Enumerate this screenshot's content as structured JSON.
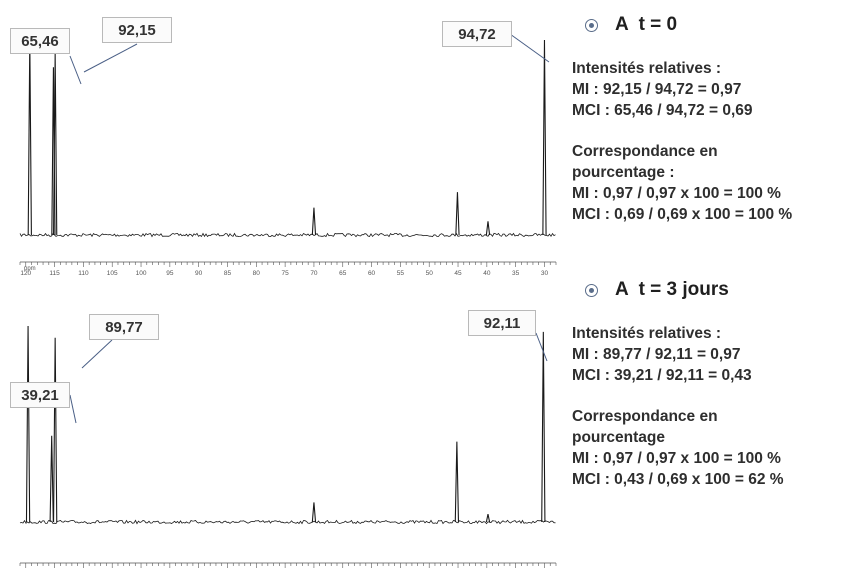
{
  "chart_data": [
    {
      "type": "line",
      "title": "",
      "xlabel": "ppm",
      "ylabel": "",
      "xlim": [
        121,
        28
      ],
      "ticks": [
        120,
        115,
        110,
        105,
        100,
        95,
        90,
        85,
        80,
        75,
        70,
        65,
        60,
        55,
        50,
        45,
        40,
        35,
        30
      ],
      "peaks": [
        {
          "ppm": 119.3,
          "height": 1.0
        },
        {
          "ppm": 115.2,
          "height": 0.86
        },
        {
          "ppm": 114.9,
          "height": 0.93
        },
        {
          "ppm": 70.0,
          "height": 0.14
        },
        {
          "ppm": 45.1,
          "height": 0.22
        },
        {
          "ppm": 39.8,
          "height": 0.07
        },
        {
          "ppm": 30.0,
          "height": 1.0
        }
      ],
      "labels": [
        {
          "text": "65,46",
          "ppm": 115.2
        },
        {
          "text": "92,15",
          "ppm": 114.9
        },
        {
          "text": "94,72",
          "ppm": 30.0
        }
      ]
    },
    {
      "type": "line",
      "title": "",
      "xlabel": "",
      "ylabel": "",
      "xlim": [
        121,
        28
      ],
      "ticks": [],
      "peaks": [
        {
          "ppm": 119.6,
          "height": 1.0
        },
        {
          "ppm": 115.5,
          "height": 0.44
        },
        {
          "ppm": 114.9,
          "height": 0.94
        },
        {
          "ppm": 70.0,
          "height": 0.1
        },
        {
          "ppm": 45.2,
          "height": 0.41
        },
        {
          "ppm": 39.8,
          "height": 0.04
        },
        {
          "ppm": 30.2,
          "height": 0.97
        }
      ],
      "labels": [
        {
          "text": "39,21",
          "ppm": 115.5
        },
        {
          "text": "89,77",
          "ppm": 114.9
        },
        {
          "text": "92,11",
          "ppm": 30.2
        }
      ]
    }
  ],
  "panel1": {
    "heading": "A  t = 0",
    "lines_a": [
      "Intensités relatives :",
      "MI : 92,15 / 94,72 = 0,97",
      "MCI : 65,46 / 94,72 = 0,69"
    ],
    "lines_b": [
      "Correspondance en",
      "pourcentage :",
      "MI : 0,97 / 0,97 x 100 = 100 %",
      "MCI : 0,69 / 0,69 x 100 = 100 %"
    ]
  },
  "panel2": {
    "heading": "A  t = 3 jours",
    "lines_a": [
      "Intensités relatives :",
      "MI : 89,77 / 92,11 = 0,97",
      "MCI : 39,21 / 92,11 = 0,43"
    ],
    "lines_b": [
      "Correspondance en",
      "pourcentage",
      "MI : 0,97 / 0,97 x 100 = 100 %",
      "MCI : 0,43 / 0,69 x 100 = 62 %"
    ]
  },
  "colors": {
    "trace": "#1a1a1a",
    "leader": "#4a5f86",
    "bullet": "#5a6d8a"
  }
}
